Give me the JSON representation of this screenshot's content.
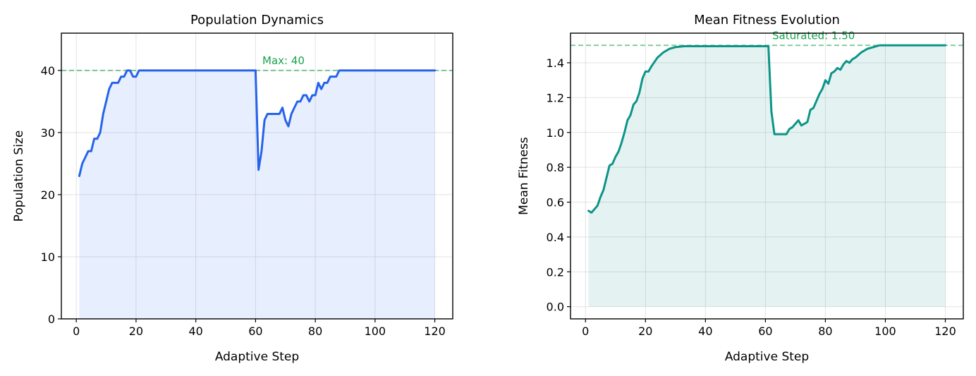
{
  "chart_data": [
    {
      "type": "area",
      "title": "Population Dynamics",
      "xlabel": "Adaptive Step",
      "ylabel": "Population Size",
      "xlim": [
        -5,
        126
      ],
      "ylim": [
        0,
        46
      ],
      "xticks": [
        0,
        20,
        40,
        60,
        80,
        100,
        120
      ],
      "yticks": [
        0,
        10,
        20,
        30,
        40
      ],
      "grid": true,
      "series": [
        {
          "color": "#2563eb",
          "fill_color": "#2563eb",
          "x": [
            1,
            2,
            3,
            4,
            5,
            6,
            7,
            8,
            9,
            10,
            11,
            12,
            13,
            14,
            15,
            16,
            17,
            18,
            19,
            20,
            21,
            22,
            25,
            30,
            40,
            50,
            55,
            60,
            61,
            62,
            63,
            64,
            65,
            66,
            67,
            68,
            69,
            70,
            71,
            72,
            73,
            74,
            75,
            76,
            77,
            78,
            79,
            80,
            81,
            82,
            83,
            84,
            85,
            86,
            87,
            88,
            89,
            90,
            95,
            100,
            110,
            120
          ],
          "values": [
            23,
            25,
            26,
            27,
            27,
            29,
            29,
            30,
            33,
            35,
            37,
            38,
            38,
            38,
            39,
            39,
            40,
            40,
            39,
            39,
            40,
            40,
            40,
            40,
            40,
            40,
            40,
            40,
            24,
            27,
            32,
            33,
            33,
            33,
            33,
            33,
            34,
            32,
            31,
            33,
            34,
            35,
            35,
            36,
            36,
            35,
            36,
            36,
            38,
            37,
            38,
            38,
            39,
            39,
            39,
            40,
            40,
            40,
            40,
            40,
            40,
            40
          ]
        }
      ],
      "reference_line": {
        "value": 40,
        "label": "Max: 40",
        "color": "#16a34a"
      }
    },
    {
      "type": "area",
      "title": "Mean Fitness Evolution",
      "xlabel": "Adaptive Step",
      "ylabel": "Mean Fitness",
      "xlim": [
        -5,
        126
      ],
      "ylim": [
        -0.07,
        1.57
      ],
      "xticks": [
        0,
        20,
        40,
        60,
        80,
        100,
        120
      ],
      "yticks": [
        0.0,
        0.2,
        0.4,
        0.6,
        0.8,
        1.0,
        1.2,
        1.4
      ],
      "grid": true,
      "series": [
        {
          "color": "#0d9488",
          "fill_color": "#0d9488",
          "x": [
            1,
            2,
            3,
            4,
            5,
            6,
            7,
            8,
            9,
            10,
            11,
            12,
            13,
            14,
            15,
            16,
            17,
            18,
            19,
            20,
            21,
            22,
            24,
            26,
            28,
            30,
            33,
            36,
            40,
            45,
            50,
            55,
            60,
            61,
            62,
            63,
            64,
            65,
            66,
            67,
            68,
            69,
            70,
            71,
            72,
            73,
            74,
            75,
            76,
            77,
            78,
            79,
            80,
            81,
            82,
            83,
            84,
            85,
            86,
            87,
            88,
            89,
            90,
            92,
            94,
            96,
            98,
            100,
            102,
            105,
            110,
            120
          ],
          "values": [
            0.55,
            0.54,
            0.56,
            0.58,
            0.63,
            0.67,
            0.74,
            0.81,
            0.82,
            0.86,
            0.89,
            0.94,
            1.0,
            1.07,
            1.1,
            1.16,
            1.18,
            1.23,
            1.31,
            1.35,
            1.35,
            1.38,
            1.43,
            1.46,
            1.48,
            1.49,
            1.495,
            1.495,
            1.495,
            1.495,
            1.495,
            1.495,
            1.495,
            1.495,
            1.12,
            0.99,
            0.99,
            0.99,
            0.99,
            0.99,
            1.02,
            1.03,
            1.05,
            1.07,
            1.04,
            1.05,
            1.06,
            1.13,
            1.14,
            1.18,
            1.22,
            1.25,
            1.3,
            1.28,
            1.34,
            1.35,
            1.37,
            1.36,
            1.39,
            1.41,
            1.4,
            1.42,
            1.43,
            1.46,
            1.48,
            1.49,
            1.5,
            1.5,
            1.5,
            1.5,
            1.5,
            1.5
          ]
        }
      ],
      "reference_line": {
        "value": 1.5,
        "label": "Saturated: 1.50",
        "color": "#16a34a"
      }
    }
  ]
}
